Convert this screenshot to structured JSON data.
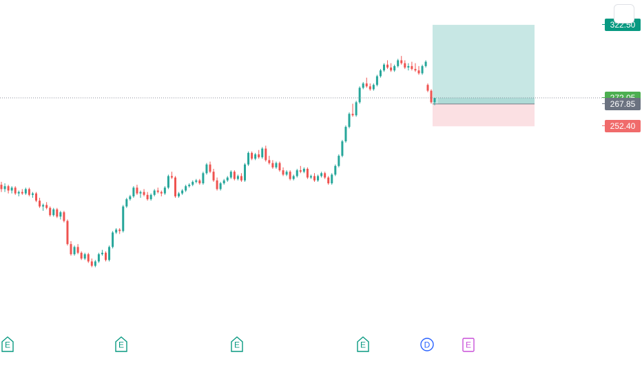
{
  "chart_data": {
    "type": "candlestick",
    "title": "",
    "price_axis_labels": [
      {
        "value": 322.5,
        "text": "322.50",
        "role": "target",
        "color": "#089981"
      },
      {
        "value": 272.05,
        "text": "272.05",
        "role": "last-price",
        "color": "#4caf50"
      },
      {
        "value": 267.85,
        "text": "267.85",
        "role": "entry",
        "color": "#6b7280"
      },
      {
        "value": 252.4,
        "text": "252.40",
        "role": "stop",
        "color": "#f06b6b"
      }
    ],
    "position_tool": {
      "entry": 267.85,
      "target": 322.5,
      "stop": 252.4,
      "profit_color": "#c7e7e4",
      "loss_color": "#fbe0e3"
    },
    "last_price_line": 272.05,
    "up_color": "#26a69a",
    "down_color": "#ef5350",
    "candles": [
      [
        212,
        214,
        207,
        209
      ],
      [
        209,
        213,
        207,
        211
      ],
      [
        211,
        212,
        206,
        208
      ],
      [
        208,
        211,
        206,
        210
      ],
      [
        210,
        211,
        205,
        206
      ],
      [
        206,
        208,
        204,
        207
      ],
      [
        207,
        209,
        205,
        206
      ],
      [
        206,
        210,
        205,
        209
      ],
      [
        209,
        210,
        204,
        205
      ],
      [
        205,
        207,
        203,
        206
      ],
      [
        206,
        207,
        200,
        201
      ],
      [
        201,
        203,
        196,
        197
      ],
      [
        197,
        199,
        194,
        198
      ],
      [
        198,
        200,
        195,
        196
      ],
      [
        196,
        197,
        190,
        191
      ],
      [
        191,
        196,
        190,
        195
      ],
      [
        195,
        196,
        189,
        190
      ],
      [
        190,
        194,
        188,
        193
      ],
      [
        193,
        194,
        186,
        187
      ],
      [
        187,
        188,
        170,
        171
      ],
      [
        171,
        173,
        163,
        164
      ],
      [
        164,
        170,
        163,
        169
      ],
      [
        169,
        171,
        164,
        165
      ],
      [
        165,
        166,
        160,
        161
      ],
      [
        161,
        165,
        160,
        164
      ],
      [
        164,
        165,
        158,
        159
      ],
      [
        159,
        161,
        155,
        156
      ],
      [
        156,
        160,
        155,
        159
      ],
      [
        159,
        165,
        158,
        164
      ],
      [
        164,
        167,
        163,
        165
      ],
      [
        165,
        166,
        159,
        160
      ],
      [
        160,
        170,
        159,
        169
      ],
      [
        169,
        180,
        168,
        179
      ],
      [
        179,
        182,
        178,
        181
      ],
      [
        181,
        182,
        178,
        180
      ],
      [
        180,
        198,
        179,
        197
      ],
      [
        197,
        203,
        196,
        202
      ],
      [
        202,
        205,
        201,
        204
      ],
      [
        204,
        211,
        203,
        210
      ],
      [
        210,
        212,
        205,
        206
      ],
      [
        206,
        208,
        203,
        207
      ],
      [
        207,
        209,
        204,
        205
      ],
      [
        205,
        207,
        201,
        202
      ],
      [
        202,
        206,
        201,
        205
      ],
      [
        205,
        209,
        204,
        208
      ],
      [
        208,
        210,
        206,
        207
      ],
      [
        207,
        208,
        204,
        206
      ],
      [
        206,
        211,
        205,
        210
      ],
      [
        210,
        219,
        209,
        218
      ],
      [
        218,
        221,
        216,
        217
      ],
      [
        217,
        218,
        203,
        204
      ],
      [
        204,
        207,
        203,
        206
      ],
      [
        206,
        209,
        205,
        208
      ],
      [
        208,
        212,
        207,
        211
      ],
      [
        211,
        213,
        210,
        212
      ],
      [
        212,
        215,
        211,
        214
      ],
      [
        214,
        216,
        213,
        215
      ],
      [
        215,
        216,
        212,
        213
      ],
      [
        213,
        221,
        212,
        220
      ],
      [
        220,
        227,
        219,
        226
      ],
      [
        226,
        228,
        220,
        221
      ],
      [
        221,
        223,
        214,
        215
      ],
      [
        215,
        217,
        208,
        209
      ],
      [
        209,
        214,
        208,
        213
      ],
      [
        213,
        216,
        212,
        215
      ],
      [
        215,
        218,
        214,
        217
      ],
      [
        217,
        222,
        216,
        221
      ],
      [
        221,
        222,
        215,
        216
      ],
      [
        216,
        219,
        215,
        218
      ],
      [
        218,
        220,
        214,
        215
      ],
      [
        215,
        227,
        214,
        226
      ],
      [
        226,
        235,
        225,
        234
      ],
      [
        234,
        235,
        229,
        230
      ],
      [
        230,
        234,
        229,
        233
      ],
      [
        233,
        236,
        230,
        231
      ],
      [
        231,
        238,
        230,
        237
      ],
      [
        237,
        239,
        228,
        229
      ],
      [
        229,
        232,
        226,
        227
      ],
      [
        227,
        229,
        223,
        224
      ],
      [
        224,
        228,
        223,
        227
      ],
      [
        227,
        228,
        221,
        222
      ],
      [
        222,
        224,
        218,
        219
      ],
      [
        219,
        222,
        218,
        221
      ],
      [
        221,
        222,
        215,
        216
      ],
      [
        216,
        219,
        215,
        218
      ],
      [
        218,
        223,
        217,
        222
      ],
      [
        222,
        225,
        220,
        221
      ],
      [
        221,
        224,
        220,
        223
      ],
      [
        223,
        224,
        216,
        217
      ],
      [
        217,
        219,
        216,
        218
      ],
      [
        218,
        220,
        214,
        215
      ],
      [
        215,
        219,
        214,
        218
      ],
      [
        218,
        221,
        217,
        220
      ],
      [
        220,
        221,
        216,
        217
      ],
      [
        217,
        218,
        212,
        213
      ],
      [
        213,
        220,
        212,
        219
      ],
      [
        219,
        226,
        218,
        225
      ],
      [
        225,
        233,
        224,
        232
      ],
      [
        232,
        243,
        231,
        242
      ],
      [
        242,
        253,
        241,
        252
      ],
      [
        252,
        262,
        251,
        261
      ],
      [
        261,
        268,
        259,
        260
      ],
      [
        260,
        270,
        259,
        269
      ],
      [
        269,
        280,
        268,
        279
      ],
      [
        279,
        283,
        278,
        282
      ],
      [
        282,
        286,
        279,
        280
      ],
      [
        280,
        282,
        277,
        278
      ],
      [
        278,
        282,
        277,
        281
      ],
      [
        281,
        288,
        280,
        287
      ],
      [
        287,
        292,
        286,
        291
      ],
      [
        291,
        296,
        290,
        295
      ],
      [
        295,
        298,
        292,
        293
      ],
      [
        293,
        296,
        290,
        291
      ],
      [
        291,
        295,
        290,
        294
      ],
      [
        294,
        299,
        293,
        298
      ],
      [
        298,
        301,
        295,
        296
      ],
      [
        296,
        298,
        292,
        293
      ],
      [
        293,
        296,
        291,
        294
      ],
      [
        294,
        297,
        291,
        292
      ],
      [
        292,
        296,
        290,
        291
      ],
      [
        291,
        294,
        288,
        289
      ],
      [
        289,
        295,
        288,
        294
      ],
      [
        294,
        298,
        293,
        297
      ],
      [
        281,
        282,
        276,
        277
      ],
      [
        277,
        278,
        268,
        269
      ],
      [
        269,
        272,
        267,
        272
      ]
    ]
  },
  "event_markers": [
    {
      "letter": "E",
      "kind": "earnings",
      "color": "#089981"
    },
    {
      "letter": "E",
      "kind": "earnings",
      "color": "#089981"
    },
    {
      "letter": "E",
      "kind": "earnings",
      "color": "#089981"
    },
    {
      "letter": "E",
      "kind": "earnings",
      "color": "#089981"
    },
    {
      "letter": "D",
      "kind": "dividend",
      "color": "#2962ff"
    },
    {
      "letter": "E",
      "kind": "earnings-upcoming",
      "color": "#c84fd8"
    }
  ]
}
